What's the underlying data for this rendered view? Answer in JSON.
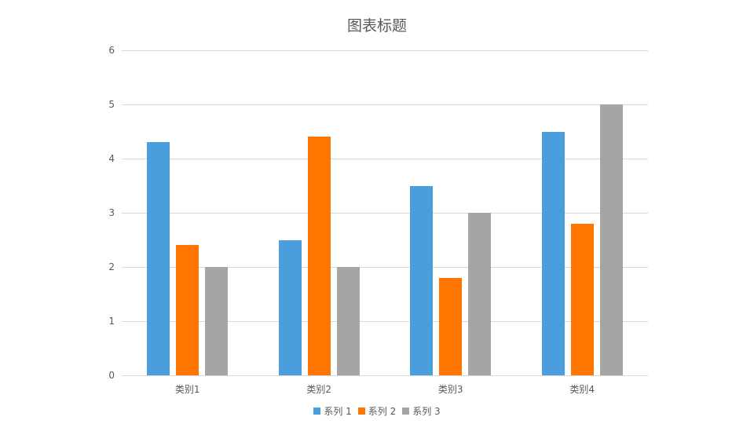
{
  "chart_data": {
    "type": "bar",
    "title": "图表标题",
    "categories": [
      "类别1",
      "类别2",
      "类别3",
      "类别4"
    ],
    "series": [
      {
        "name": "系列 1",
        "color": "#4a9edb",
        "values": [
          4.3,
          2.5,
          3.5,
          4.5
        ]
      },
      {
        "name": "系列 2",
        "color": "#ff7500",
        "values": [
          2.4,
          4.4,
          1.8,
          2.8
        ]
      },
      {
        "name": "系列 3",
        "color": "#a5a5a5",
        "values": [
          2,
          2,
          3,
          5
        ]
      }
    ],
    "xlabel": "",
    "ylabel": "",
    "ylim": [
      0,
      6
    ],
    "yticks": [
      "0",
      "1",
      "2",
      "3",
      "4",
      "5",
      "6"
    ],
    "grid": true,
    "legend_position": "bottom"
  }
}
